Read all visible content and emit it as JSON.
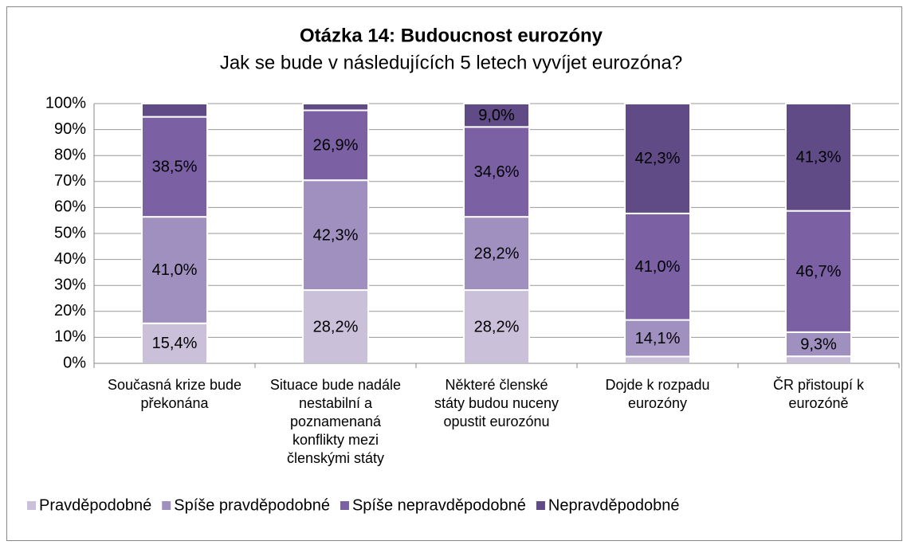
{
  "chart_data": {
    "type": "stacked_bar",
    "title": "Otázka 14: Budoucnost eurozóny",
    "subtitle": "Jak se bude v následujících 5 letech vyvíjet eurozóna?",
    "categories": [
      "Současná krize bude překonána",
      "Situace bude nadále nestabilní a poznamenaná konflikty mezi členskými státy",
      "Některé členské státy budou nuceny opustit eurozónu",
      "Dojde k rozpadu eurozóny",
      "ČR přistoupí k eurozóně"
    ],
    "series": [
      {
        "name": "Pravděpodobné",
        "color": "#cac0da",
        "values": [
          15.4,
          28.2,
          28.2,
          2.6,
          2.7
        ],
        "value_labels": [
          "15,4%",
          "28,2%",
          "28,2%",
          null,
          null
        ]
      },
      {
        "name": "Spíše pravděpodobné",
        "color": "#9f90bf",
        "values": [
          41.0,
          42.3,
          28.2,
          14.1,
          9.3
        ],
        "value_labels": [
          "41,0%",
          "42,3%",
          "28,2%",
          "14,1%",
          "9,3%"
        ]
      },
      {
        "name": "Spíše nepravděpodobné",
        "color": "#7b60a4",
        "values": [
          38.5,
          26.9,
          34.6,
          41.0,
          46.7
        ],
        "value_labels": [
          "38,5%",
          "26,9%",
          "34,6%",
          "41,0%",
          "46,7%"
        ]
      },
      {
        "name": "Nepravděpodobné",
        "color": "#604b86",
        "values": [
          5.1,
          2.6,
          9.0,
          42.3,
          41.3
        ],
        "value_labels": [
          null,
          null,
          "9,0%",
          "42,3%",
          "41,3%"
        ]
      }
    ],
    "ylim": [
      0,
      100
    ],
    "yticks": [
      {
        "value": 0,
        "label": "0%"
      },
      {
        "value": 10,
        "label": "10%"
      },
      {
        "value": 20,
        "label": "20%"
      },
      {
        "value": 30,
        "label": "30%"
      },
      {
        "value": 40,
        "label": "40%"
      },
      {
        "value": 50,
        "label": "50%"
      },
      {
        "value": 60,
        "label": "60%"
      },
      {
        "value": 70,
        "label": "70%"
      },
      {
        "value": 80,
        "label": "80%"
      },
      {
        "value": 90,
        "label": "90%"
      },
      {
        "value": 100,
        "label": "100%"
      }
    ],
    "grid": true,
    "legend": "bottom"
  }
}
